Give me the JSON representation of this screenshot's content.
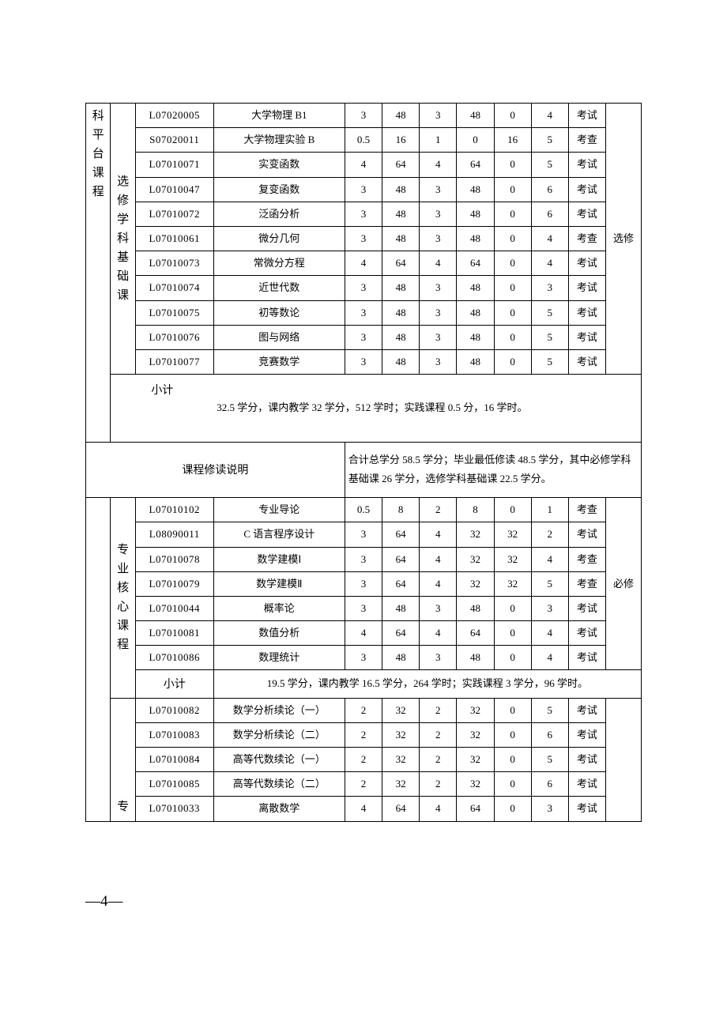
{
  "groupA": {
    "col1": "科平台课程",
    "col2": "选修学科基础课",
    "req": "选修",
    "rows": [
      {
        "code": "L07020005",
        "name": "大学物理 B1",
        "c": "3",
        "h": "48",
        "t": "3",
        "l": "48",
        "p": "0",
        "s": "4",
        "e": "考试"
      },
      {
        "code": "S07020011",
        "name": "大学物理实验 B",
        "c": "0.5",
        "h": "16",
        "t": "1",
        "l": "0",
        "p": "16",
        "s": "5",
        "e": "考查"
      },
      {
        "code": "L07010071",
        "name": "实变函数",
        "c": "4",
        "h": "64",
        "t": "4",
        "l": "64",
        "p": "0",
        "s": "5",
        "e": "考试"
      },
      {
        "code": "L07010047",
        "name": "复变函数",
        "c": "3",
        "h": "48",
        "t": "3",
        "l": "48",
        "p": "0",
        "s": "6",
        "e": "考试"
      },
      {
        "code": "L07010072",
        "name": "泛函分析",
        "c": "3",
        "h": "48",
        "t": "3",
        "l": "48",
        "p": "0",
        "s": "6",
        "e": "考试"
      },
      {
        "code": "L07010061",
        "name": "微分几何",
        "c": "3",
        "h": "48",
        "t": "3",
        "l": "48",
        "p": "0",
        "s": "4",
        "e": "考查"
      },
      {
        "code": "L07010073",
        "name": "常微分方程",
        "c": "4",
        "h": "64",
        "t": "4",
        "l": "64",
        "p": "0",
        "s": "4",
        "e": "考试"
      },
      {
        "code": "L07010074",
        "name": "近世代数",
        "c": "3",
        "h": "48",
        "t": "3",
        "l": "48",
        "p": "0",
        "s": "3",
        "e": "考试"
      },
      {
        "code": "L07010075",
        "name": "初等数论",
        "c": "3",
        "h": "48",
        "t": "3",
        "l": "48",
        "p": "0",
        "s": "5",
        "e": "考试"
      },
      {
        "code": "L07010076",
        "name": "图与网络",
        "c": "3",
        "h": "48",
        "t": "3",
        "l": "48",
        "p": "0",
        "s": "5",
        "e": "考试"
      },
      {
        "code": "L07010077",
        "name": "竞赛数学",
        "c": "3",
        "h": "48",
        "t": "3",
        "l": "48",
        "p": "0",
        "s": "5",
        "e": "考试"
      }
    ],
    "subtotal_label": "小计",
    "subtotal_text": "32.5 学分，课内教学 32 学分，512 学时；实践课程 0.5 分，16 学时。"
  },
  "desc": {
    "label": "课程修读说明",
    "text": "合计总学分 58.5 学分；毕业最低修读 48.5 学分，其中必修学科基础课 26 学分，选修学科基础课 22.5 学分。"
  },
  "groupB": {
    "col2": "专业核心课程",
    "req": "必修",
    "rows": [
      {
        "code": "L07010102",
        "name": "专业导论",
        "c": "0.5",
        "h": "8",
        "t": "2",
        "l": "8",
        "p": "0",
        "s": "1",
        "e": "考查"
      },
      {
        "code": "L08090011",
        "name": "C 语言程序设计",
        "c": "3",
        "h": "64",
        "t": "4",
        "l": "32",
        "p": "32",
        "s": "2",
        "e": "考试"
      },
      {
        "code": "L07010078",
        "name": "数学建模Ⅰ",
        "c": "3",
        "h": "64",
        "t": "4",
        "l": "32",
        "p": "32",
        "s": "4",
        "e": "考查"
      },
      {
        "code": "L07010079",
        "name": "数学建模Ⅱ",
        "c": "3",
        "h": "64",
        "t": "4",
        "l": "32",
        "p": "32",
        "s": "5",
        "e": "考查"
      },
      {
        "code": "L07010044",
        "name": "概率论",
        "c": "3",
        "h": "48",
        "t": "3",
        "l": "48",
        "p": "0",
        "s": "3",
        "e": "考试"
      },
      {
        "code": "L07010081",
        "name": "数值分析",
        "c": "4",
        "h": "64",
        "t": "4",
        "l": "64",
        "p": "0",
        "s": "4",
        "e": "考试"
      },
      {
        "code": "L07010086",
        "name": "数理统计",
        "c": "3",
        "h": "48",
        "t": "3",
        "l": "48",
        "p": "0",
        "s": "4",
        "e": "考试"
      }
    ],
    "subtotal_label": "小计",
    "subtotal_text": "19.5 学分，课内教学 16.5 学分，264 学时；实践课程 3 学分，96 学时。"
  },
  "groupC": {
    "col2": "专",
    "rows": [
      {
        "code": "L07010082",
        "name": "数学分析续论（一）",
        "c": "2",
        "h": "32",
        "t": "2",
        "l": "32",
        "p": "0",
        "s": "5",
        "e": "考试"
      },
      {
        "code": "L07010083",
        "name": "数学分析续论（二）",
        "c": "2",
        "h": "32",
        "t": "2",
        "l": "32",
        "p": "0",
        "s": "6",
        "e": "考试"
      },
      {
        "code": "L07010084",
        "name": "高等代数续论（一）",
        "c": "2",
        "h": "32",
        "t": "2",
        "l": "32",
        "p": "0",
        "s": "5",
        "e": "考试"
      },
      {
        "code": "L07010085",
        "name": "高等代数续论（二）",
        "c": "2",
        "h": "32",
        "t": "2",
        "l": "32",
        "p": "0",
        "s": "6",
        "e": "考试"
      },
      {
        "code": "L07010033",
        "name": "离散数学",
        "c": "4",
        "h": "64",
        "t": "4",
        "l": "64",
        "p": "0",
        "s": "3",
        "e": "考试"
      }
    ]
  },
  "footer": "—4—"
}
